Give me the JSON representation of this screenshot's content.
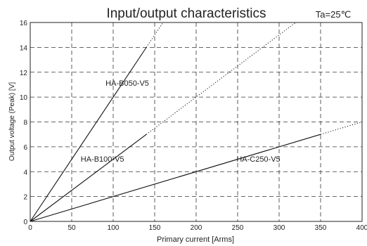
{
  "chart_data": {
    "type": "line",
    "title": "Input/output characteristics",
    "condition": "Ta=25℃",
    "xlabel": "Primary current [Arms]",
    "ylabel": "Output voltage (Peak) [V]",
    "xlim": [
      0,
      400
    ],
    "ylim": [
      0,
      16
    ],
    "xticks": [
      0,
      50,
      100,
      150,
      200,
      250,
      300,
      350,
      400
    ],
    "yticks": [
      0,
      2,
      4,
      6,
      8,
      10,
      12,
      14,
      16
    ],
    "grid": true,
    "grid_style": "dashed",
    "legend": "none",
    "series": [
      {
        "name": "HA-B050-V5",
        "solid": [
          [
            0,
            0
          ],
          [
            140,
            14
          ]
        ],
        "dotted": [
          [
            140,
            14
          ],
          [
            160,
            16
          ]
        ]
      },
      {
        "name": "HA-B100-V5",
        "solid": [
          [
            0,
            0
          ],
          [
            140,
            7
          ]
        ],
        "dotted": [
          [
            140,
            7
          ],
          [
            320,
            16
          ]
        ]
      },
      {
        "name": "HA-C250-V5",
        "solid": [
          [
            0,
            0
          ],
          [
            350,
            7
          ]
        ],
        "dotted": [
          [
            350,
            7
          ],
          [
            400,
            8
          ]
        ]
      }
    ],
    "annotations": [
      {
        "text": "HA-B050-V5",
        "x": 117,
        "y": 10.9
      },
      {
        "text": "HA-B100-V5",
        "x": 87,
        "y": 4.8
      },
      {
        "text": "HA-C250-V5",
        "x": 275,
        "y": 4.8
      }
    ]
  }
}
